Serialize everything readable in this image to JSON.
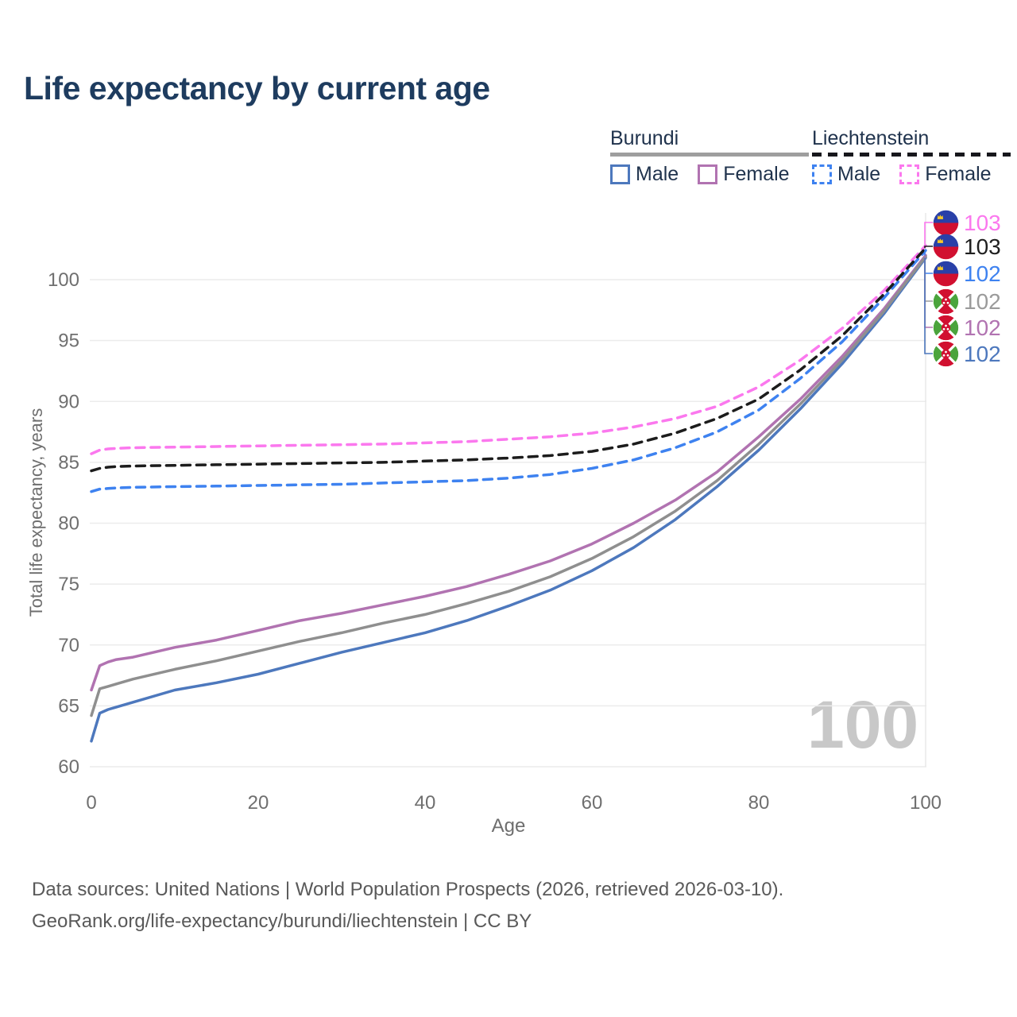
{
  "title": "Life expectancy by current age",
  "age_counter": "100",
  "axes": {
    "y_title": "Total life expectancy, years",
    "x_title": "Age"
  },
  "legend": {
    "groups": [
      {
        "label": "Burundi",
        "line_style": "solid",
        "underline_color": "#9e9e9e",
        "items": [
          {
            "label": "Male",
            "color": "#4d78bd"
          },
          {
            "label": "Female",
            "color": "#b173b1"
          }
        ]
      },
      {
        "label": "Liechtenstein",
        "line_style": "dashed",
        "underline_color": "#17171c",
        "items": [
          {
            "label": "Male",
            "color": "#3e82f0"
          },
          {
            "label": "Female",
            "color": "#fb78ee"
          }
        ]
      }
    ]
  },
  "chart_data": {
    "type": "line",
    "title": "Life expectancy by current age",
    "xlabel": "Age",
    "ylabel": "Total life expectancy, years",
    "xlim": [
      0,
      100
    ],
    "ylim": [
      60,
      103
    ],
    "x_ticks": [
      0,
      20,
      40,
      60,
      80,
      100
    ],
    "y_ticks": [
      60,
      65,
      70,
      75,
      80,
      85,
      90,
      95,
      100
    ],
    "grid": "horizontal",
    "tracker_age": 100,
    "x": [
      0,
      1,
      2,
      3,
      5,
      10,
      15,
      20,
      25,
      30,
      35,
      40,
      45,
      50,
      55,
      60,
      65,
      70,
      75,
      80,
      85,
      90,
      95,
      100
    ],
    "series": [
      {
        "name": "Burundi Male",
        "country": "Burundi",
        "sex": "Male",
        "color": "#4d78bd",
        "dash": "solid",
        "values": [
          62.1,
          64.4,
          64.7,
          64.9,
          65.3,
          66.3,
          66.9,
          67.6,
          68.5,
          69.4,
          70.2,
          71.0,
          72.0,
          73.2,
          74.5,
          76.1,
          78.0,
          80.3,
          83.0,
          86.0,
          89.4,
          93.1,
          97.2,
          101.8
        ]
      },
      {
        "name": "Burundi Female",
        "country": "Burundi",
        "sex": "Female",
        "color": "#b173b1",
        "dash": "solid",
        "values": [
          66.3,
          68.3,
          68.6,
          68.8,
          69.0,
          69.8,
          70.4,
          71.2,
          72.0,
          72.6,
          73.3,
          74.0,
          74.8,
          75.8,
          76.9,
          78.3,
          80.0,
          81.9,
          84.2,
          87.1,
          90.2,
          93.7,
          97.6,
          102.0
        ]
      },
      {
        "name": "Burundi Both sexes",
        "country": "Burundi",
        "sex": "Both",
        "color": "#8f8f8f",
        "dash": "solid",
        "values": [
          64.2,
          66.4,
          66.6,
          66.8,
          67.2,
          68.0,
          68.7,
          69.5,
          70.3,
          71.0,
          71.8,
          72.5,
          73.4,
          74.4,
          75.6,
          77.1,
          78.9,
          81.0,
          83.5,
          86.5,
          89.8,
          93.4,
          97.4,
          101.9
        ]
      },
      {
        "name": "Liechtenstein Male",
        "country": "Liechtenstein",
        "sex": "Male",
        "color": "#3e82f0",
        "dash": "dashed",
        "values": [
          82.6,
          82.8,
          82.85,
          82.9,
          82.95,
          83.0,
          83.05,
          83.1,
          83.15,
          83.2,
          83.3,
          83.4,
          83.5,
          83.7,
          84.0,
          84.5,
          85.2,
          86.2,
          87.5,
          89.3,
          91.9,
          94.9,
          98.5,
          102.4
        ]
      },
      {
        "name": "Liechtenstein Female",
        "country": "Liechtenstein",
        "sex": "Female",
        "color": "#fb78ee",
        "dash": "dashed",
        "values": [
          85.7,
          86.0,
          86.1,
          86.15,
          86.2,
          86.25,
          86.3,
          86.35,
          86.4,
          86.45,
          86.5,
          86.6,
          86.7,
          86.9,
          87.1,
          87.4,
          87.9,
          88.6,
          89.6,
          91.2,
          93.4,
          96.0,
          99.1,
          102.8
        ]
      },
      {
        "name": "Liechtenstein Both sexes",
        "country": "Liechtenstein",
        "sex": "Both",
        "color": "#1c1c1c",
        "dash": "dashed",
        "values": [
          84.3,
          84.5,
          84.6,
          84.65,
          84.7,
          84.75,
          84.8,
          84.85,
          84.9,
          84.95,
          85.0,
          85.1,
          85.2,
          85.35,
          85.55,
          85.9,
          86.5,
          87.4,
          88.6,
          90.2,
          92.6,
          95.4,
          98.8,
          102.6
        ]
      }
    ]
  },
  "end_labels": [
    {
      "value": "103",
      "color": "#fb78ee",
      "flag": "liechtenstein",
      "series_name": "Liechtenstein Female"
    },
    {
      "value": "103",
      "color": "#1f1f1f",
      "flag": "liechtenstein",
      "series_name": "Liechtenstein Both sexes"
    },
    {
      "value": "102",
      "color": "#3e82f0",
      "flag": "liechtenstein",
      "series_name": "Liechtenstein Male"
    },
    {
      "value": "102",
      "color": "#9b9b9b",
      "flag": "burundi",
      "series_name": "Burundi Both sexes"
    },
    {
      "value": "102",
      "color": "#b173b1",
      "flag": "burundi",
      "series_name": "Burundi Female"
    },
    {
      "value": "102",
      "color": "#4d78bd",
      "flag": "burundi",
      "series_name": "Burundi Male"
    }
  ],
  "footer": {
    "line1": "Data sources: United Nations | World Population Prospects (2026, retrieved 2026-03-10).",
    "line2": "GeoRank.org/life-expectancy/burundi/liechtenstein | CC BY"
  }
}
